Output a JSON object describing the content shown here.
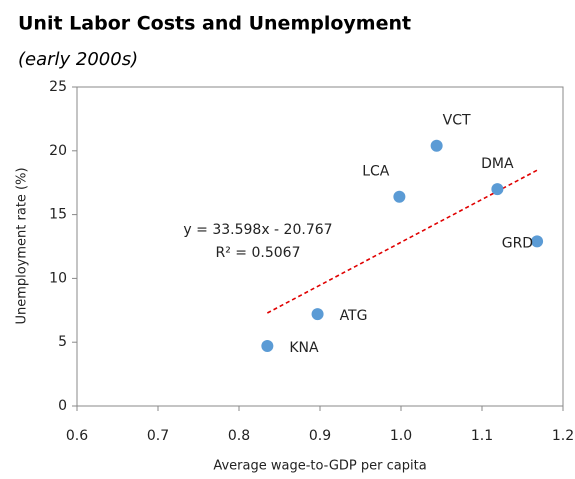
{
  "chart_data": {
    "type": "scatter",
    "title": "Unit Labor Costs and Unemployment",
    "subtitle": "(early 2000s)",
    "x_label": "Average wage-to-GDP per capita",
    "y_label": "Unemployment rate (%)",
    "x": [
      0.835,
      0.897,
      0.998,
      1.044,
      1.119,
      1.168
    ],
    "values": [
      4.7,
      7.2,
      16.4,
      20.4,
      17.0,
      12.9
    ],
    "point_labels": [
      "KNA",
      "ATG",
      "LCA",
      "VCT",
      "DMA",
      "GRD"
    ],
    "color": "#5b9bd5",
    "trendline": {
      "slope": 33.598,
      "intercept": -20.767,
      "color": "#e00000",
      "equation": "y = 33.598x - 20.767",
      "r2": "R² = 0.5067"
    },
    "xlim": [
      0.6,
      1.2
    ],
    "xticks": [
      0.6,
      0.7,
      0.8,
      0.9,
      {
        "value": 1,
        "label": "1.0"
      },
      1.1,
      1.2
    ],
    "ylim": [
      0,
      25
    ],
    "yticks": [
      0,
      5,
      10,
      15,
      20,
      25
    ],
    "grid": false
  }
}
